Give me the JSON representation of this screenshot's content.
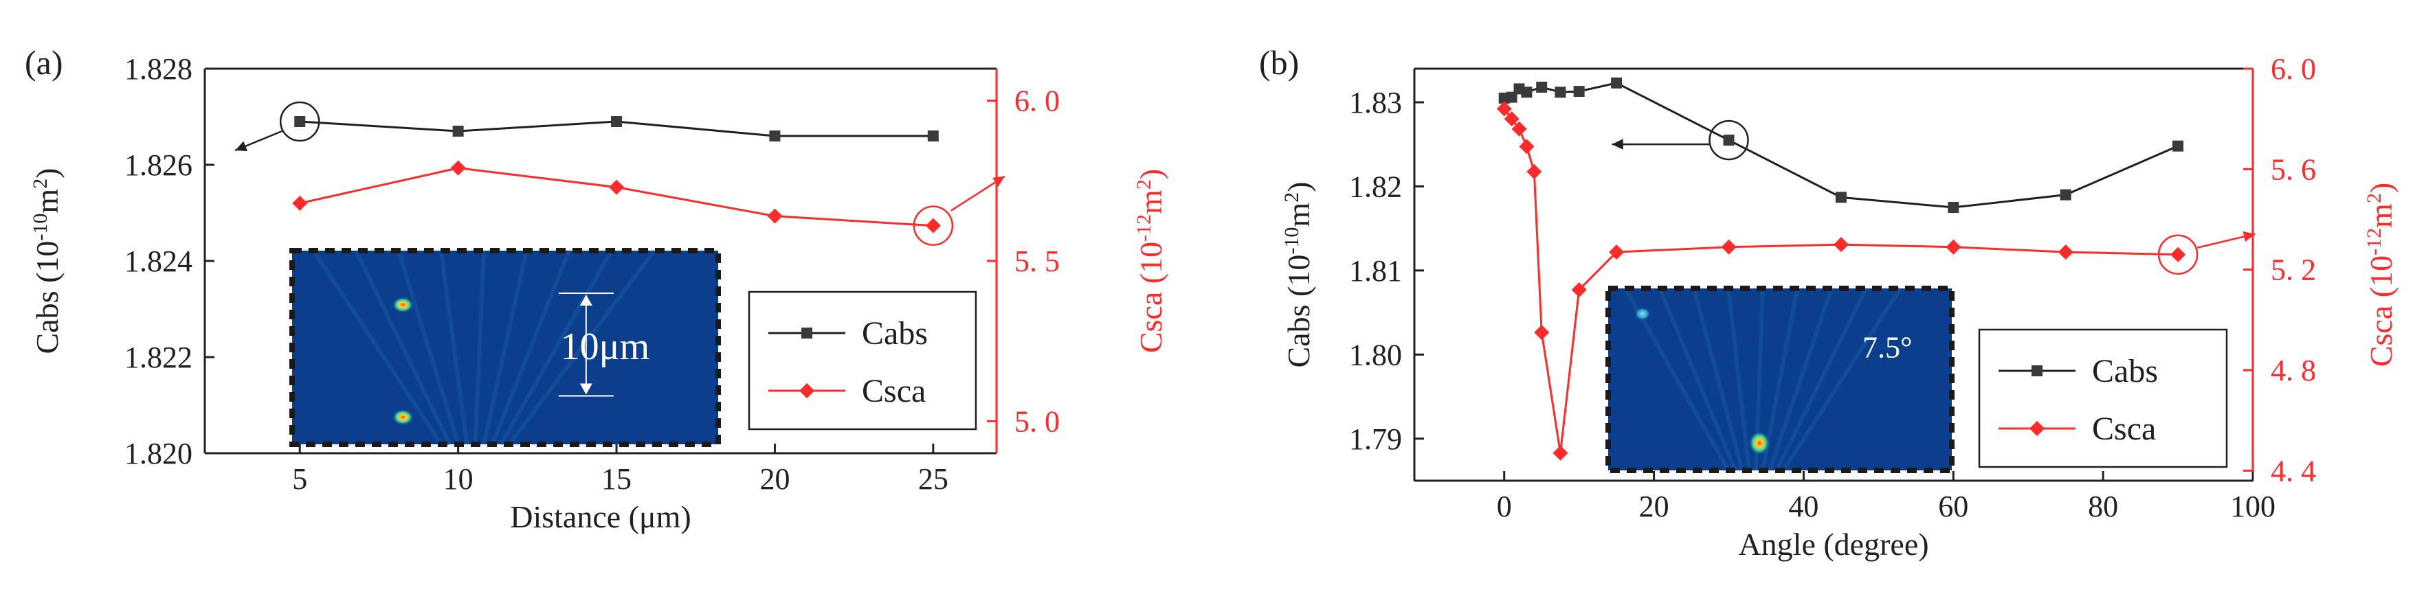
{
  "colors": {
    "black": "#202020",
    "red": "#ff2a2a",
    "inset_bg": "#0b3f8e",
    "inset_border": "#1a1a1a"
  },
  "chart_data": [
    {
      "type": "line",
      "panel_label": "(a)",
      "xlabel": "Distance (μm)",
      "xlim": [
        2,
        27
      ],
      "xticks": [
        5,
        10,
        15,
        20,
        25
      ],
      "x": [
        5,
        10,
        15,
        20,
        25
      ],
      "left_axis": {
        "label_main": "Cabs (10",
        "label_sup": "-10",
        "label_mid": "m",
        "label_sup2": "2",
        "label_end": ")",
        "ylim": [
          1.82,
          1.828
        ],
        "ticks": [
          1.82,
          1.822,
          1.824,
          1.826,
          1.828
        ],
        "tick_labels": [
          "1.820",
          "1.822",
          "1.824",
          "1.826",
          "1.828"
        ]
      },
      "right_axis": {
        "label_main": "Csca (10",
        "label_sup": "-12",
        "label_mid": "m",
        "label_sup2": "2",
        "label_end": ")",
        "ylim": [
          4.9,
          6.1
        ],
        "ticks": [
          5.0,
          5.5,
          6.0
        ],
        "tick_labels": [
          "5. 0",
          "5. 5",
          "6. 0"
        ]
      },
      "series": [
        {
          "name": "Cabs",
          "axis": "left",
          "marker": "square",
          "values": [
            1.8269,
            1.8267,
            1.8269,
            1.8266,
            1.8266
          ]
        },
        {
          "name": "Csca",
          "axis": "right",
          "marker": "diamond",
          "values": [
            5.68,
            5.79,
            5.73,
            5.64,
            5.61
          ]
        }
      ],
      "legend": [
        "Cabs",
        "Csca"
      ],
      "inset": {
        "annotation": "10μm"
      }
    },
    {
      "type": "line",
      "panel_label": "(b)",
      "xlabel": "Angle (degree)",
      "xlim": [
        -12,
        100
      ],
      "xticks": [
        0,
        20,
        40,
        60,
        80,
        100
      ],
      "x_cabs": [
        0,
        1,
        2,
        3,
        5,
        7.5,
        10,
        15,
        30,
        45,
        60,
        75,
        90
      ],
      "x_csca": [
        0,
        1,
        2,
        3,
        4,
        5,
        7.5,
        10,
        15,
        30,
        45,
        60,
        75,
        90
      ],
      "left_axis": {
        "label_main": "Cabs (10",
        "label_sup": "-10",
        "label_mid": "m",
        "label_sup2": "2",
        "label_end": ")",
        "ylim": [
          1.785,
          1.834
        ],
        "ticks": [
          1.79,
          1.8,
          1.81,
          1.82,
          1.83
        ],
        "tick_labels": [
          "1.79",
          "1.80",
          "1.81",
          "1.82",
          "1.83"
        ]
      },
      "right_axis": {
        "label_main": "Csca (10",
        "label_sup": "-12",
        "label_mid": "m",
        "label_sup2": "2",
        "label_end": ")",
        "ylim": [
          4.36,
          6.0
        ],
        "ticks": [
          4.4,
          4.8,
          5.2,
          5.6,
          6.0
        ],
        "tick_labels": [
          "4. 4",
          "4. 8",
          "5. 2",
          "5. 6",
          "6. 0"
        ]
      },
      "series": [
        {
          "name": "Cabs",
          "axis": "left",
          "marker": "square",
          "values": [
            1.8305,
            1.8306,
            1.8316,
            1.8312,
            1.8318,
            1.8312,
            1.8313,
            1.8323,
            1.8255,
            1.8187,
            1.8175,
            1.819,
            1.8248
          ]
        },
        {
          "name": "Csca",
          "axis": "right",
          "marker": "diamond",
          "values": [
            5.84,
            5.8,
            5.76,
            5.69,
            5.59,
            4.95,
            4.47,
            5.12,
            5.27,
            5.29,
            5.3,
            5.29,
            5.27,
            5.26
          ]
        }
      ],
      "legend": [
        "Cabs",
        "Csca"
      ],
      "inset": {
        "annotation": "7.5°"
      }
    }
  ]
}
